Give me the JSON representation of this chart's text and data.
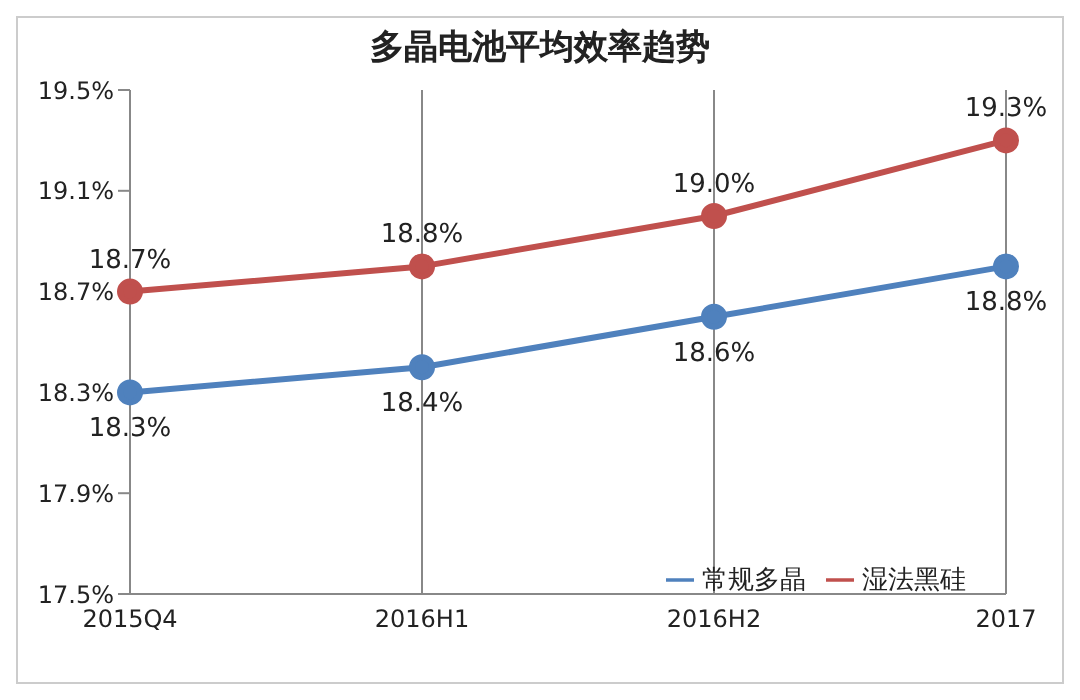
{
  "chart_data": {
    "type": "line",
    "title": "多晶电池平均效率趋势",
    "categories": [
      "2015Q4",
      "2016H1",
      "2016H2",
      "2017"
    ],
    "series": [
      {
        "name": "常规多晶",
        "color": "#4f81bd",
        "values": [
          18.3,
          18.4,
          18.6,
          18.8
        ],
        "value_labels": [
          "18.3%",
          "18.4%",
          "18.6%",
          "18.8%"
        ]
      },
      {
        "name": "湿法黑硅",
        "color": "#c0504d",
        "values": [
          18.7,
          18.8,
          19.0,
          19.3
        ],
        "value_labels": [
          "18.7%",
          "18.8%",
          "19.0%",
          "19.3%"
        ]
      }
    ],
    "ylim": [
      17.5,
      19.5
    ],
    "yticks": [
      {
        "value": 17.5,
        "label": "17.5%"
      },
      {
        "value": 17.9,
        "label": "17.9%"
      },
      {
        "value": 18.3,
        "label": "18.3%"
      },
      {
        "value": 18.7,
        "label": "18.7%"
      },
      {
        "value": 19.1,
        "label": "19.1%"
      },
      {
        "value": 19.5,
        "label": "19.5%"
      }
    ],
    "grid": "x",
    "legend": "bottom right",
    "marker": "circle",
    "line_style": "solid"
  }
}
